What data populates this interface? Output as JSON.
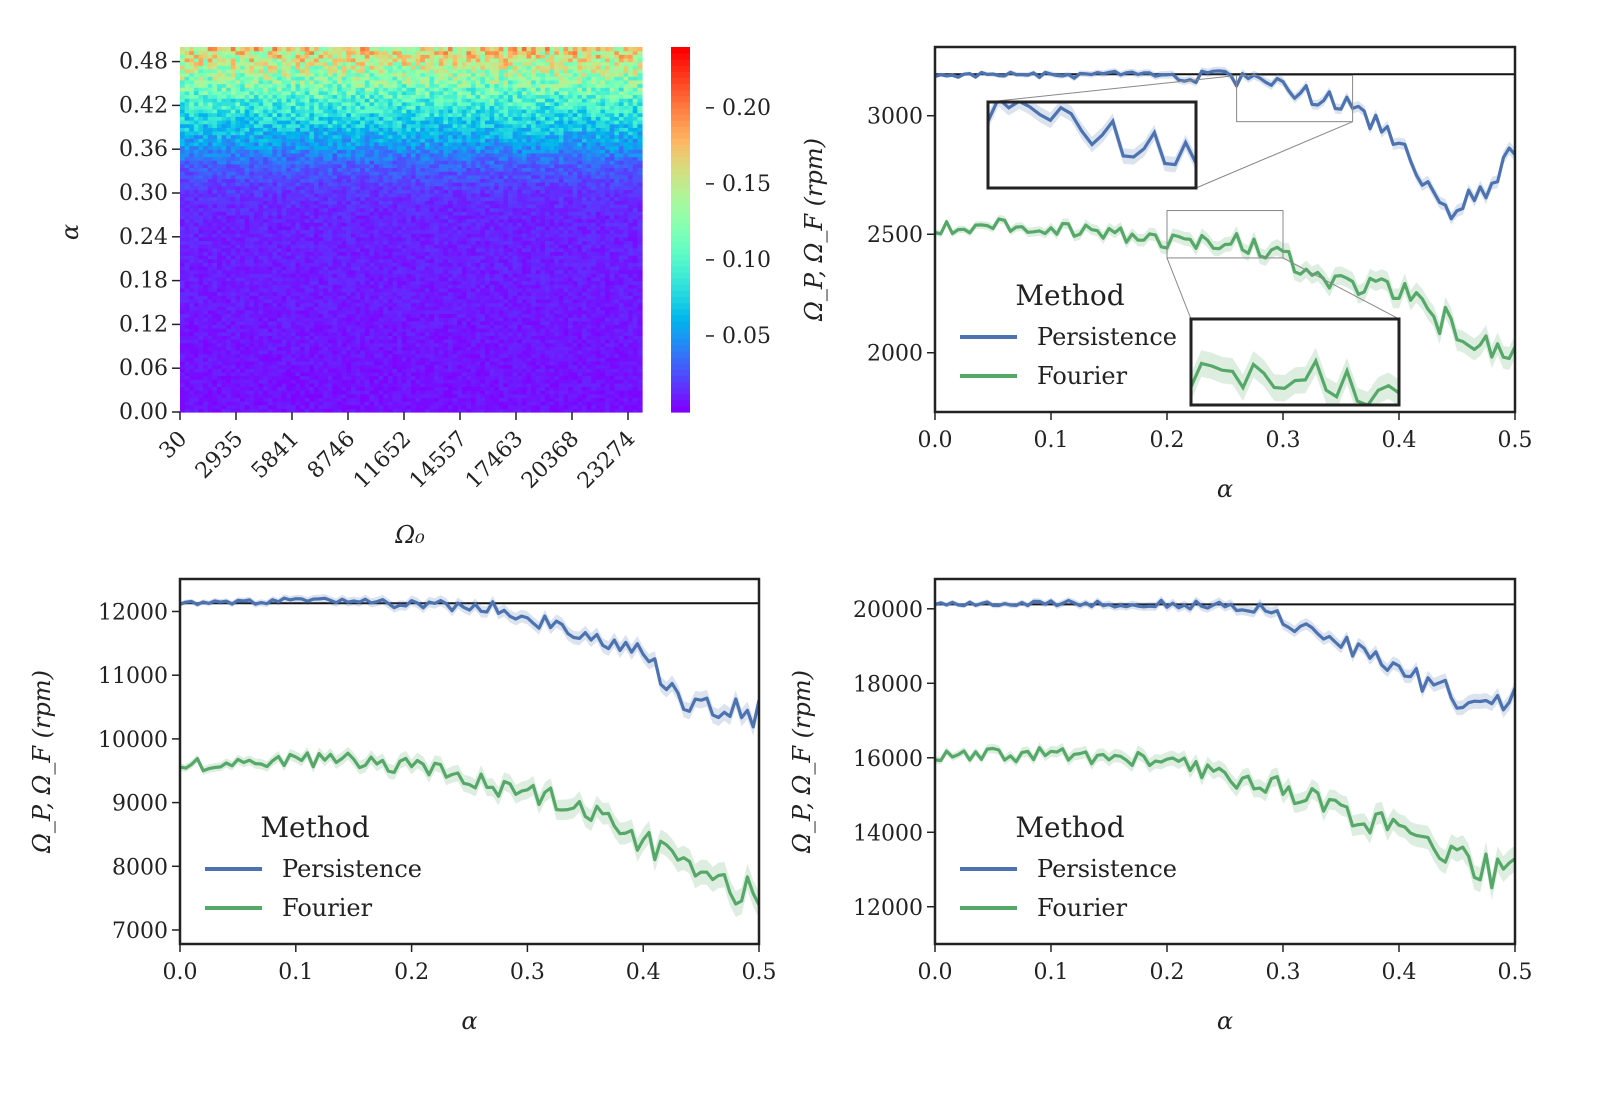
{
  "chart_data": [
    {
      "type": "heatmap",
      "xlabel": "Ω₀",
      "ylabel": "α",
      "x_tick_labels": [
        "30",
        "2935",
        "5841",
        "8746",
        "11652",
        "14557",
        "17463",
        "20368",
        "23274"
      ],
      "y_tick_labels": [
        "0.00",
        "0.06",
        "0.12",
        "0.18",
        "0.24",
        "0.30",
        "0.36",
        "0.42",
        "0.48"
      ],
      "xlim": [
        30,
        24000
      ],
      "ylim": [
        0.0,
        0.5
      ],
      "grid": {
        "rows": 100,
        "cols": 100
      },
      "colormap": "rainbow",
      "colorbar": {
        "range": [
          0.0,
          0.24
        ],
        "tick_values": [
          0.05,
          0.1,
          0.15,
          0.2
        ],
        "tick_labels": [
          "0.05",
          "0.10",
          "0.15",
          "0.20"
        ]
      },
      "rows_summary": {
        "alpha": [
          0.0,
          0.05,
          0.1,
          0.15,
          0.2,
          0.25,
          0.28,
          0.3,
          0.32,
          0.34,
          0.36,
          0.38,
          0.4,
          0.42,
          0.44,
          0.46,
          0.48,
          0.5
        ],
        "mean_value": [
          0.005,
          0.006,
          0.007,
          0.008,
          0.009,
          0.01,
          0.012,
          0.015,
          0.022,
          0.03,
          0.045,
          0.06,
          0.075,
          0.09,
          0.11,
          0.13,
          0.15,
          0.165
        ]
      }
    },
    {
      "type": "line",
      "xlabel": "α",
      "ylabel": "Ω_P, Ω_F (rpm)",
      "xlim": [
        0,
        0.5
      ],
      "ylim": [
        1750,
        3290
      ],
      "x_ticks": [
        0,
        0.1,
        0.2,
        0.3,
        0.4,
        0.5
      ],
      "x_tick_labels": [
        "0.0",
        "0.1",
        "0.2",
        "0.3",
        "0.4",
        "0.5"
      ],
      "y_ticks": [
        2000,
        2500,
        3000
      ],
      "y_tick_labels": [
        "2000",
        "2500",
        "3000"
      ],
      "reference_line": 3175,
      "legend": {
        "title": "Method",
        "position": "lower-left"
      },
      "series": [
        {
          "name": "Persistence",
          "color": "#4c72b0",
          "x": [
            0,
            0.05,
            0.1,
            0.15,
            0.2,
            0.25,
            0.3,
            0.35,
            0.4,
            0.44,
            0.48,
            0.5
          ],
          "y": [
            3170,
            3175,
            3170,
            3170,
            3165,
            3160,
            3120,
            3050,
            2900,
            2600,
            2650,
            2880
          ]
        },
        {
          "name": "Fourier",
          "color": "#55a868",
          "x": [
            0,
            0.05,
            0.1,
            0.15,
            0.2,
            0.25,
            0.3,
            0.35,
            0.4,
            0.45,
            0.5
          ],
          "y": [
            2520,
            2540,
            2530,
            2500,
            2470,
            2480,
            2400,
            2300,
            2250,
            2100,
            2000
          ]
        }
      ],
      "insets": [
        {
          "series": "Persistence",
          "zoom_x": [
            0.26,
            0.36
          ],
          "zoom_y": [
            2975,
            3170
          ]
        },
        {
          "series": "Fourier",
          "zoom_x": [
            0.2,
            0.3
          ],
          "zoom_y": [
            2400,
            2600
          ]
        }
      ]
    },
    {
      "type": "line",
      "xlabel": "α",
      "ylabel": "Ω_P, Ω_F (rpm)",
      "xlim": [
        0,
        0.5
      ],
      "ylim": [
        6780,
        12510
      ],
      "x_ticks": [
        0,
        0.1,
        0.2,
        0.3,
        0.4,
        0.5
      ],
      "x_tick_labels": [
        "0.0",
        "0.1",
        "0.2",
        "0.3",
        "0.4",
        "0.5"
      ],
      "y_ticks": [
        7000,
        8000,
        9000,
        10000,
        11000,
        12000
      ],
      "y_tick_labels": [
        "7000",
        "8000",
        "9000",
        "10000",
        "11000",
        "12000"
      ],
      "reference_line": 12130,
      "legend": {
        "title": "Method",
        "position": "lower-left"
      },
      "series": [
        {
          "name": "Persistence",
          "color": "#4c72b0",
          "x": [
            0,
            0.05,
            0.1,
            0.15,
            0.2,
            0.25,
            0.28,
            0.3,
            0.35,
            0.4,
            0.44,
            0.47,
            0.5
          ],
          "y": [
            12130,
            12140,
            12170,
            12150,
            12110,
            12080,
            12050,
            11900,
            11600,
            11300,
            10500,
            10500,
            10400
          ]
        },
        {
          "name": "Fourier",
          "color": "#55a868",
          "x": [
            0,
            0.05,
            0.1,
            0.15,
            0.2,
            0.25,
            0.3,
            0.35,
            0.4,
            0.45,
            0.5
          ],
          "y": [
            9600,
            9650,
            9700,
            9650,
            9600,
            9300,
            9200,
            8900,
            8400,
            7900,
            7500
          ]
        }
      ]
    },
    {
      "type": "line",
      "xlabel": "α",
      "ylabel": "Ω_P, Ω_F (rpm)",
      "xlim": [
        0,
        0.5
      ],
      "ylim": [
        11000,
        20800
      ],
      "x_ticks": [
        0,
        0.1,
        0.2,
        0.3,
        0.4,
        0.5
      ],
      "x_tick_labels": [
        "0.0",
        "0.1",
        "0.2",
        "0.3",
        "0.4",
        "0.5"
      ],
      "y_ticks": [
        12000,
        14000,
        16000,
        18000,
        20000
      ],
      "y_tick_labels": [
        "12000",
        "14000",
        "16000",
        "18000",
        "20000"
      ],
      "reference_line": 20120,
      "legend": {
        "title": "Method",
        "position": "lower-left"
      },
      "series": [
        {
          "name": "Persistence",
          "color": "#4c72b0",
          "x": [
            0,
            0.05,
            0.1,
            0.15,
            0.2,
            0.25,
            0.28,
            0.3,
            0.35,
            0.4,
            0.45,
            0.48,
            0.5
          ],
          "y": [
            20130,
            20120,
            20150,
            20140,
            20120,
            20080,
            20000,
            19700,
            19100,
            18300,
            17600,
            17200,
            17800
          ]
        },
        {
          "name": "Fourier",
          "color": "#55a868",
          "x": [
            0,
            0.05,
            0.1,
            0.15,
            0.2,
            0.25,
            0.3,
            0.35,
            0.4,
            0.45,
            0.5
          ],
          "y": [
            16000,
            16050,
            16100,
            16000,
            15900,
            15500,
            15200,
            14600,
            14000,
            13200,
            12800
          ]
        }
      ]
    }
  ]
}
